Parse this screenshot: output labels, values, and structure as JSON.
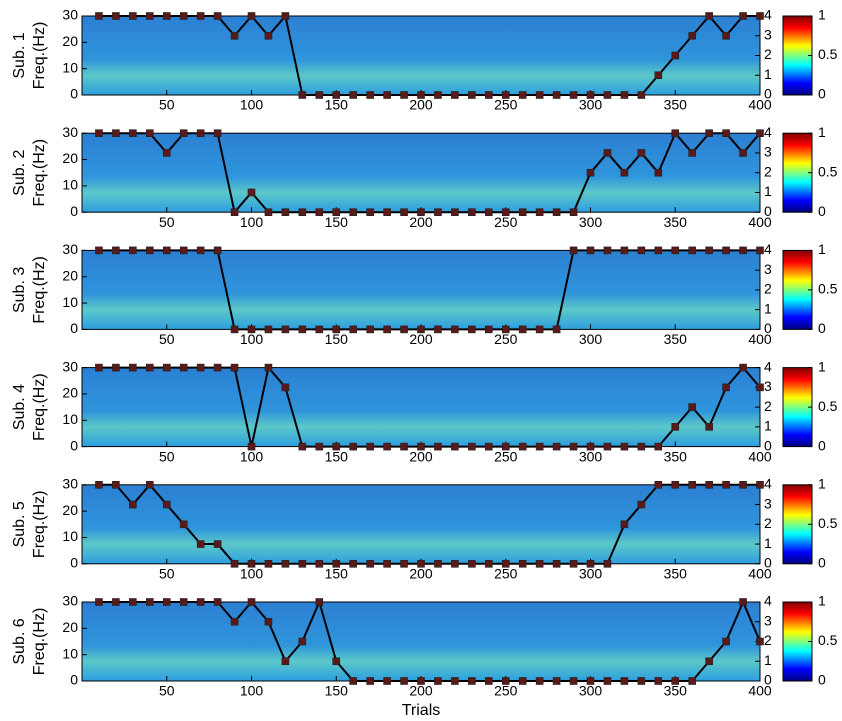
{
  "chart_data": [
    {
      "type": "line",
      "title": "Sub. 1",
      "ylabel": "Freq.(Hz)",
      "x": [
        10,
        20,
        30,
        40,
        50,
        60,
        70,
        80,
        90,
        100,
        110,
        120,
        130,
        140,
        150,
        160,
        170,
        180,
        190,
        200,
        210,
        220,
        230,
        240,
        250,
        260,
        270,
        280,
        290,
        300,
        310,
        320,
        330,
        340,
        350,
        360,
        370,
        380,
        390,
        400
      ],
      "series": [
        {
          "color": "#5a1a1a",
          "axis": "y2",
          "values": [
            4,
            4,
            4,
            4,
            4,
            4,
            4,
            4,
            3,
            4,
            3,
            4,
            0,
            0,
            0,
            0,
            0,
            0,
            0,
            0,
            0,
            0,
            0,
            0,
            0,
            0,
            0,
            0,
            0,
            0,
            0,
            0,
            0,
            1,
            2,
            3,
            4,
            3,
            4,
            4
          ]
        }
      ],
      "xlim": [
        0,
        400
      ],
      "xticks": [
        50,
        100,
        150,
        200,
        250,
        300,
        350,
        400
      ],
      "ylim": [
        0,
        30
      ],
      "yticks": [
        0,
        10,
        20,
        30
      ],
      "y2lim": [
        0,
        4
      ],
      "y2ticks": [
        0,
        1,
        2,
        3,
        4
      ],
      "colorbar": {
        "lim": [
          0,
          1
        ],
        "ticks": [
          0,
          0.5,
          1
        ]
      }
    },
    {
      "type": "line",
      "title": "Sub. 2",
      "ylabel": "Freq.(Hz)",
      "x": [
        10,
        20,
        30,
        40,
        50,
        60,
        70,
        80,
        90,
        100,
        110,
        120,
        130,
        140,
        150,
        160,
        170,
        180,
        190,
        200,
        210,
        220,
        230,
        240,
        250,
        260,
        270,
        280,
        290,
        300,
        310,
        320,
        330,
        340,
        350,
        360,
        370,
        380,
        390,
        400
      ],
      "series": [
        {
          "color": "#5a1a1a",
          "axis": "y2",
          "values": [
            4,
            4,
            4,
            4,
            3,
            4,
            4,
            4,
            0,
            1,
            0,
            0,
            0,
            0,
            0,
            0,
            0,
            0,
            0,
            0,
            0,
            0,
            0,
            0,
            0,
            0,
            0,
            0,
            0,
            2,
            3,
            2,
            3,
            2,
            4,
            3,
            4,
            4,
            3,
            4
          ]
        }
      ],
      "xlim": [
        0,
        400
      ],
      "xticks": [
        50,
        100,
        150,
        200,
        250,
        300,
        350,
        400
      ],
      "ylim": [
        0,
        30
      ],
      "yticks": [
        0,
        10,
        20,
        30
      ],
      "y2lim": [
        0,
        4
      ],
      "y2ticks": [
        0,
        1,
        2,
        3,
        4
      ],
      "colorbar": {
        "lim": [
          0,
          1
        ],
        "ticks": [
          0,
          0.5,
          1
        ]
      }
    },
    {
      "type": "line",
      "title": "Sub. 3",
      "ylabel": "Freq.(Hz)",
      "x": [
        10,
        20,
        30,
        40,
        50,
        60,
        70,
        80,
        90,
        100,
        110,
        120,
        130,
        140,
        150,
        160,
        170,
        180,
        190,
        200,
        210,
        220,
        230,
        240,
        250,
        260,
        270,
        280,
        290,
        300,
        310,
        320,
        330,
        340,
        350,
        360,
        370,
        380,
        390,
        400
      ],
      "series": [
        {
          "color": "#5a1a1a",
          "axis": "y2",
          "values": [
            4,
            4,
            4,
            4,
            4,
            4,
            4,
            4,
            0,
            0,
            0,
            0,
            0,
            0,
            0,
            0,
            0,
            0,
            0,
            0,
            0,
            0,
            0,
            0,
            0,
            0,
            0,
            0,
            4,
            4,
            4,
            4,
            4,
            4,
            4,
            4,
            4,
            4,
            4,
            4
          ]
        }
      ],
      "xlim": [
        0,
        400
      ],
      "xticks": [
        50,
        100,
        150,
        200,
        250,
        300,
        350,
        400
      ],
      "ylim": [
        0,
        30
      ],
      "yticks": [
        0,
        10,
        20,
        30
      ],
      "y2lim": [
        0,
        4
      ],
      "y2ticks": [
        0,
        1,
        2,
        3,
        4
      ],
      "colorbar": {
        "lim": [
          0,
          1
        ],
        "ticks": [
          0,
          0.5,
          1
        ]
      }
    },
    {
      "type": "line",
      "title": "Sub. 4",
      "ylabel": "Freq.(Hz)",
      "x": [
        10,
        20,
        30,
        40,
        50,
        60,
        70,
        80,
        90,
        100,
        110,
        120,
        130,
        140,
        150,
        160,
        170,
        180,
        190,
        200,
        210,
        220,
        230,
        240,
        250,
        260,
        270,
        280,
        290,
        300,
        310,
        320,
        330,
        340,
        350,
        360,
        370,
        380,
        390,
        400
      ],
      "series": [
        {
          "color": "#5a1a1a",
          "axis": "y2",
          "values": [
            4,
            4,
            4,
            4,
            4,
            4,
            4,
            4,
            4,
            0,
            4,
            3,
            0,
            0,
            0,
            0,
            0,
            0,
            0,
            0,
            0,
            0,
            0,
            0,
            0,
            0,
            0,
            0,
            0,
            0,
            0,
            0,
            0,
            0,
            1,
            2,
            1,
            3,
            4,
            3
          ]
        }
      ],
      "xlim": [
        0,
        400
      ],
      "xticks": [
        50,
        100,
        150,
        200,
        250,
        300,
        350,
        400
      ],
      "ylim": [
        0,
        30
      ],
      "yticks": [
        0,
        10,
        20,
        30
      ],
      "y2lim": [
        0,
        4
      ],
      "y2ticks": [
        0,
        1,
        2,
        3,
        4
      ],
      "colorbar": {
        "lim": [
          0,
          1
        ],
        "ticks": [
          0,
          0.5,
          1
        ]
      }
    },
    {
      "type": "line",
      "title": "Sub. 5",
      "ylabel": "Freq.(Hz)",
      "x": [
        10,
        20,
        30,
        40,
        50,
        60,
        70,
        80,
        90,
        100,
        110,
        120,
        130,
        140,
        150,
        160,
        170,
        180,
        190,
        200,
        210,
        220,
        230,
        240,
        250,
        260,
        270,
        280,
        290,
        300,
        310,
        320,
        330,
        340,
        350,
        360,
        370,
        380,
        390,
        400
      ],
      "series": [
        {
          "color": "#5a1a1a",
          "axis": "y2",
          "values": [
            4,
            4,
            3,
            4,
            3,
            2,
            1,
            1,
            0,
            0,
            0,
            0,
            0,
            0,
            0,
            0,
            0,
            0,
            0,
            0,
            0,
            0,
            0,
            0,
            0,
            0,
            0,
            0,
            0,
            0,
            0,
            2,
            3,
            4,
            4,
            4,
            4,
            4,
            4,
            4
          ]
        }
      ],
      "xlim": [
        0,
        400
      ],
      "xticks": [
        50,
        100,
        150,
        200,
        250,
        300,
        350,
        400
      ],
      "ylim": [
        0,
        30
      ],
      "yticks": [
        0,
        10,
        20,
        30
      ],
      "y2lim": [
        0,
        4
      ],
      "y2ticks": [
        0,
        1,
        2,
        3,
        4
      ],
      "colorbar": {
        "lim": [
          0,
          1
        ],
        "ticks": [
          0,
          0.5,
          1
        ]
      }
    },
    {
      "type": "line",
      "title": "Sub. 6",
      "ylabel": "Freq.(Hz)",
      "xlabel": "Trials",
      "x": [
        10,
        20,
        30,
        40,
        50,
        60,
        70,
        80,
        90,
        100,
        110,
        120,
        130,
        140,
        150,
        160,
        170,
        180,
        190,
        200,
        210,
        220,
        230,
        240,
        250,
        260,
        270,
        280,
        290,
        300,
        310,
        320,
        330,
        340,
        350,
        360,
        370,
        380,
        390,
        400
      ],
      "series": [
        {
          "color": "#5a1a1a",
          "axis": "y2",
          "values": [
            4,
            4,
            4,
            4,
            4,
            4,
            4,
            4,
            3,
            4,
            3,
            1,
            2,
            4,
            1,
            0,
            0,
            0,
            0,
            0,
            0,
            0,
            0,
            0,
            0,
            0,
            0,
            0,
            0,
            0,
            0,
            0,
            0,
            0,
            0,
            0,
            1,
            2,
            4,
            2
          ]
        }
      ],
      "xlim": [
        0,
        400
      ],
      "xticks": [
        50,
        100,
        150,
        200,
        250,
        300,
        350,
        400
      ],
      "ylim": [
        0,
        30
      ],
      "yticks": [
        0,
        10,
        20,
        30
      ],
      "y2lim": [
        0,
        4
      ],
      "y2ticks": [
        0,
        1,
        2,
        3,
        4
      ],
      "colorbar": {
        "lim": [
          0,
          1
        ],
        "ticks": [
          0,
          0.5,
          1
        ]
      }
    }
  ]
}
